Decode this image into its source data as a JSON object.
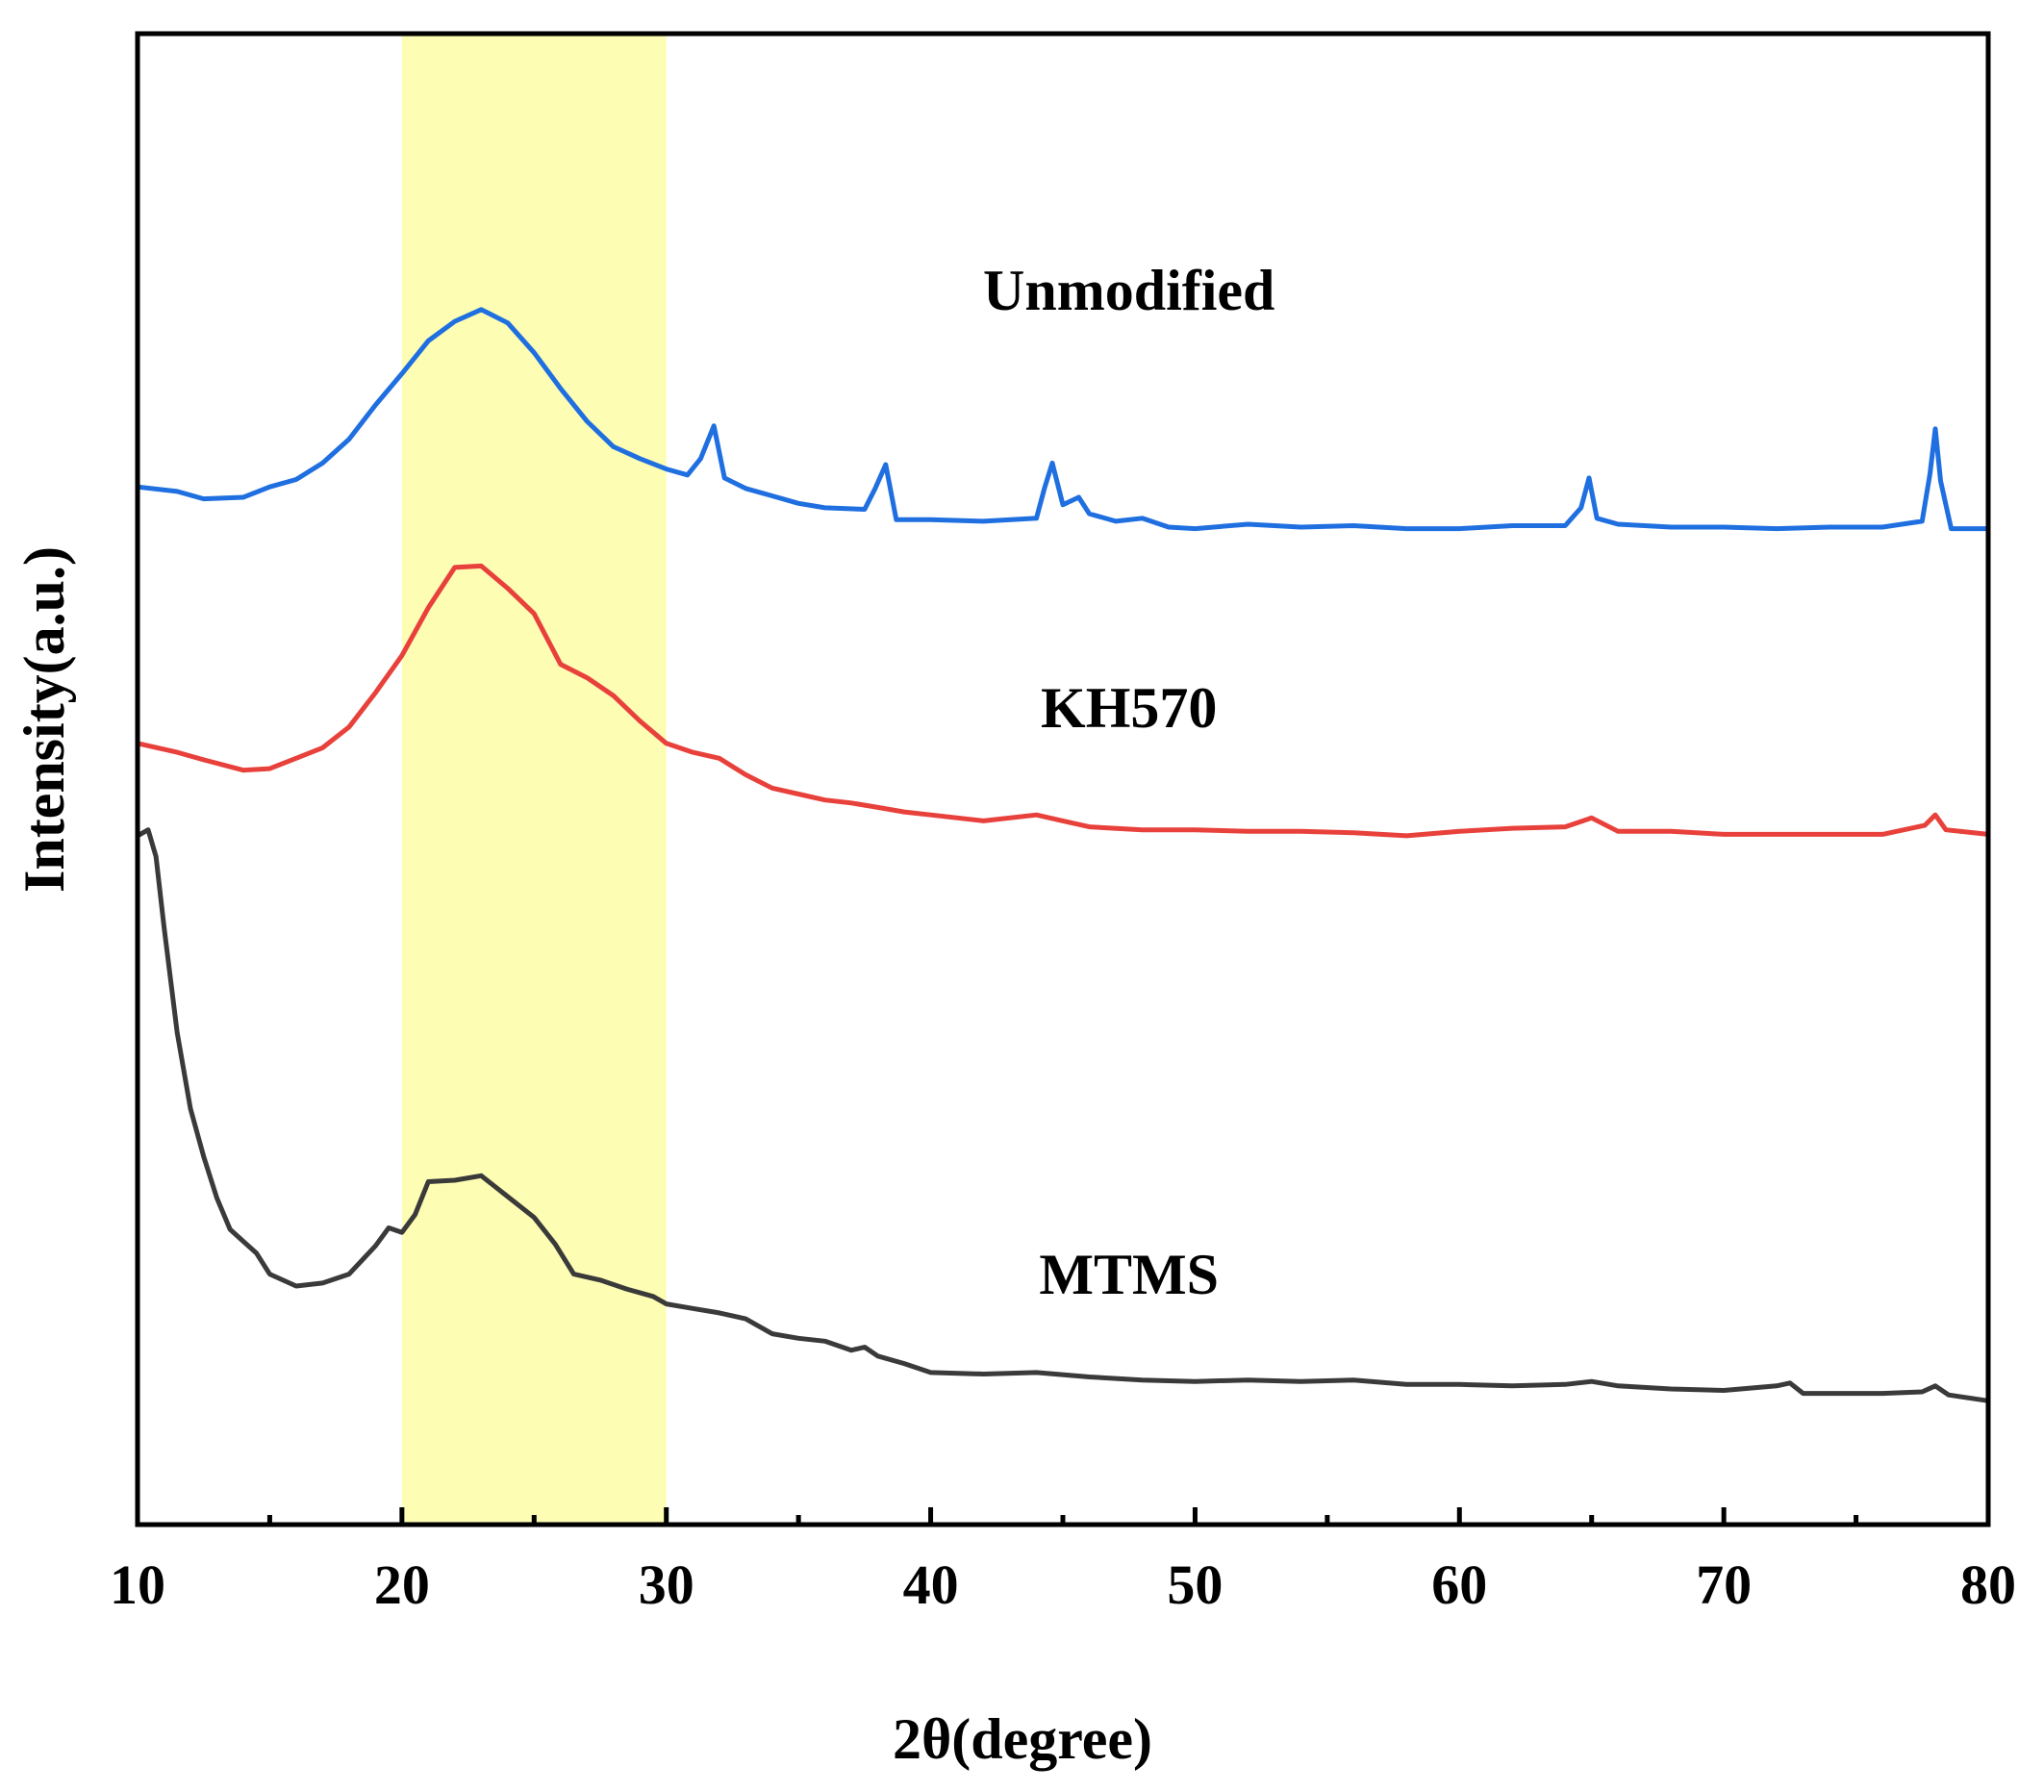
{
  "chart_data": {
    "type": "line",
    "title": "",
    "xlabel": "2θ(degree)",
    "ylabel": "Intensity(a.u.)",
    "xlim": [
      10,
      80
    ],
    "ylim": [
      0,
      100
    ],
    "xticks": [
      10,
      20,
      30,
      40,
      50,
      60,
      70,
      80
    ],
    "xtick_labels": [
      "10",
      "20",
      "30",
      "40",
      "50",
      "60",
      "70",
      "80"
    ],
    "y_tick_labels_shown": false,
    "grid": false,
    "highlight_band": {
      "x_start": 20,
      "x_end": 30,
      "color": "#fdfdb4"
    },
    "series": [
      {
        "name": "Unmodified",
        "color": "#1f6fe0",
        "label_at": [
          47.5,
          81.5
        ],
        "points": [
          [
            10,
            69.6
          ],
          [
            11.5,
            69.3
          ],
          [
            12.5,
            68.8
          ],
          [
            14,
            68.9
          ],
          [
            15,
            69.6
          ],
          [
            16,
            70.1
          ],
          [
            17,
            71.2
          ],
          [
            18,
            72.8
          ],
          [
            19,
            75.1
          ],
          [
            20,
            77.2
          ],
          [
            21,
            79.4
          ],
          [
            22,
            80.7
          ],
          [
            23,
            81.5
          ],
          [
            24,
            80.6
          ],
          [
            25,
            78.6
          ],
          [
            26,
            76.2
          ],
          [
            27,
            74
          ],
          [
            28,
            72.3
          ],
          [
            29,
            71.5
          ],
          [
            30,
            70.8
          ],
          [
            30.8,
            70.4
          ],
          [
            31.3,
            71.5
          ],
          [
            31.8,
            73.7
          ],
          [
            32.2,
            70.2
          ],
          [
            33,
            69.5
          ],
          [
            34,
            69
          ],
          [
            35,
            68.5
          ],
          [
            36,
            68.2
          ],
          [
            37.5,
            68.1
          ],
          [
            37.9,
            69.5
          ],
          [
            38.3,
            71.1
          ],
          [
            38.7,
            67.4
          ],
          [
            40,
            67.4
          ],
          [
            42,
            67.3
          ],
          [
            44,
            67.5
          ],
          [
            44.3,
            69.5
          ],
          [
            44.6,
            71.2
          ],
          [
            45,
            68.4
          ],
          [
            45.6,
            68.9
          ],
          [
            46,
            67.8
          ],
          [
            47,
            67.3
          ],
          [
            48,
            67.5
          ],
          [
            49,
            66.9
          ],
          [
            50,
            66.8
          ],
          [
            52,
            67.1
          ],
          [
            54,
            66.9
          ],
          [
            56,
            67
          ],
          [
            58,
            66.8
          ],
          [
            60,
            66.8
          ],
          [
            62,
            67
          ],
          [
            64,
            67
          ],
          [
            64.6,
            68.2
          ],
          [
            64.9,
            70.2
          ],
          [
            65.2,
            67.5
          ],
          [
            66,
            67.1
          ],
          [
            68,
            66.9
          ],
          [
            70,
            66.9
          ],
          [
            72,
            66.8
          ],
          [
            74,
            66.9
          ],
          [
            76,
            66.9
          ],
          [
            77.5,
            67.3
          ],
          [
            77.8,
            70.5
          ],
          [
            78,
            73.5
          ],
          [
            78.2,
            70
          ],
          [
            78.6,
            66.8
          ],
          [
            80,
            66.8
          ]
        ]
      },
      {
        "name": "KH570",
        "color": "#e8413b",
        "label_at": [
          47.5,
          53.5
        ],
        "points": [
          [
            10,
            52.4
          ],
          [
            11.5,
            51.8
          ],
          [
            12.5,
            51.3
          ],
          [
            14,
            50.6
          ],
          [
            15,
            50.7
          ],
          [
            16,
            51.4
          ],
          [
            17,
            52.1
          ],
          [
            18,
            53.5
          ],
          [
            19,
            55.8
          ],
          [
            20,
            58.3
          ],
          [
            21,
            61.5
          ],
          [
            22,
            64.2
          ],
          [
            23,
            64.3
          ],
          [
            24,
            62.8
          ],
          [
            25,
            61.1
          ],
          [
            26,
            57.7
          ],
          [
            27,
            56.8
          ],
          [
            28,
            55.6
          ],
          [
            29,
            53.9
          ],
          [
            30,
            52.4
          ],
          [
            31,
            51.8
          ],
          [
            32,
            51.4
          ],
          [
            33,
            50.3
          ],
          [
            34,
            49.4
          ],
          [
            35,
            49
          ],
          [
            36,
            48.6
          ],
          [
            37,
            48.4
          ],
          [
            38,
            48.1
          ],
          [
            39,
            47.8
          ],
          [
            40,
            47.6
          ],
          [
            42,
            47.2
          ],
          [
            44,
            47.6
          ],
          [
            45,
            47.2
          ],
          [
            46,
            46.8
          ],
          [
            48,
            46.6
          ],
          [
            50,
            46.6
          ],
          [
            52,
            46.5
          ],
          [
            54,
            46.5
          ],
          [
            56,
            46.4
          ],
          [
            58,
            46.2
          ],
          [
            60,
            46.5
          ],
          [
            62,
            46.7
          ],
          [
            64,
            46.8
          ],
          [
            65,
            47.4
          ],
          [
            66,
            46.5
          ],
          [
            68,
            46.5
          ],
          [
            70,
            46.3
          ],
          [
            72,
            46.3
          ],
          [
            74,
            46.3
          ],
          [
            76,
            46.3
          ],
          [
            77.6,
            46.9
          ],
          [
            78,
            47.6
          ],
          [
            78.4,
            46.6
          ],
          [
            80,
            46.3
          ]
        ]
      },
      {
        "name": "MTMS",
        "color": "#3a3a3a",
        "label_at": [
          47.5,
          15.5
        ],
        "points": [
          [
            10,
            46.2
          ],
          [
            10.4,
            46.6
          ],
          [
            10.7,
            44.8
          ],
          [
            11,
            40.1
          ],
          [
            11.5,
            33
          ],
          [
            12,
            27.9
          ],
          [
            12.5,
            24.7
          ],
          [
            13,
            21.9
          ],
          [
            13.5,
            19.8
          ],
          [
            14,
            19
          ],
          [
            14.5,
            18.2
          ],
          [
            15,
            16.8
          ],
          [
            16,
            16
          ],
          [
            17,
            16.2
          ],
          [
            18,
            16.8
          ],
          [
            19,
            18.7
          ],
          [
            19.5,
            19.9
          ],
          [
            20,
            19.6
          ],
          [
            20.5,
            20.8
          ],
          [
            21,
            23
          ],
          [
            22,
            23.1
          ],
          [
            23,
            23.4
          ],
          [
            24,
            22
          ],
          [
            25,
            20.6
          ],
          [
            25.8,
            18.8
          ],
          [
            26.5,
            16.8
          ],
          [
            27.5,
            16.4
          ],
          [
            28.5,
            15.8
          ],
          [
            29.5,
            15.3
          ],
          [
            30,
            14.8
          ],
          [
            31,
            14.5
          ],
          [
            32,
            14.2
          ],
          [
            33,
            13.8
          ],
          [
            34,
            12.8
          ],
          [
            35,
            12.5
          ],
          [
            36,
            12.3
          ],
          [
            37,
            11.7
          ],
          [
            37.5,
            11.9
          ],
          [
            38,
            11.3
          ],
          [
            39,
            10.8
          ],
          [
            40,
            10.2
          ],
          [
            42,
            10.1
          ],
          [
            44,
            10.2
          ],
          [
            46,
            9.9
          ],
          [
            48,
            9.7
          ],
          [
            50,
            9.6
          ],
          [
            52,
            9.7
          ],
          [
            54,
            9.6
          ],
          [
            56,
            9.7
          ],
          [
            58,
            9.4
          ],
          [
            60,
            9.4
          ],
          [
            62,
            9.3
          ],
          [
            64,
            9.4
          ],
          [
            65,
            9.6
          ],
          [
            66,
            9.3
          ],
          [
            68,
            9.1
          ],
          [
            70,
            9
          ],
          [
            72,
            9.3
          ],
          [
            72.5,
            9.5
          ],
          [
            73,
            8.8
          ],
          [
            74,
            8.8
          ],
          [
            76,
            8.8
          ],
          [
            77.5,
            8.9
          ],
          [
            78,
            9.3
          ],
          [
            78.5,
            8.7
          ],
          [
            80,
            8.3
          ]
        ]
      }
    ]
  }
}
